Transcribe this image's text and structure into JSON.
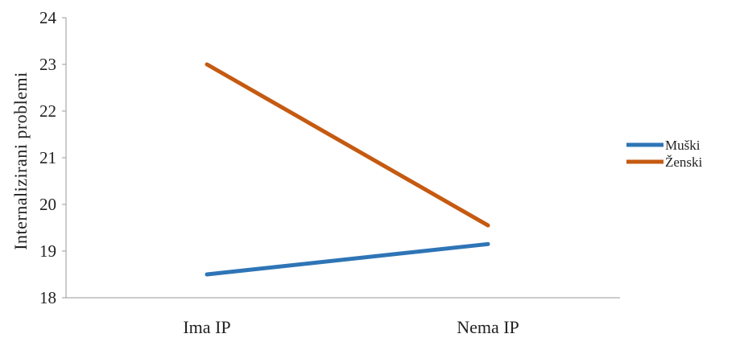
{
  "chart_data": {
    "type": "line",
    "categories": [
      "Ima IP",
      "Nema IP"
    ],
    "series": [
      {
        "name": "Muški",
        "values": [
          18.5,
          19.15
        ],
        "color": "#2e75b6"
      },
      {
        "name": "Ženski",
        "values": [
          23.0,
          19.55
        ],
        "color": "#c55a11"
      }
    ],
    "xlabel": "",
    "ylabel": "Internalizirani  problemi",
    "ylim": [
      18,
      24
    ],
    "yticks": [
      "18",
      "19",
      "20",
      "21",
      "22",
      "23",
      "24"
    ],
    "grid": false,
    "legend_position": "right"
  }
}
